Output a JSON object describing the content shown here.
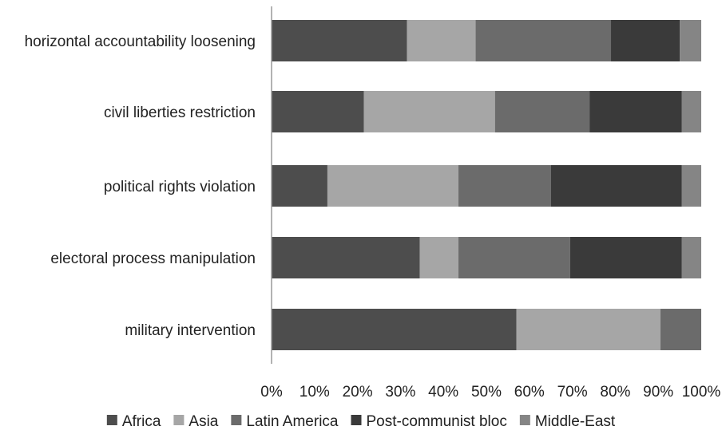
{
  "chart_data": {
    "type": "bar",
    "orientation": "horizontal",
    "stacked": true,
    "title": "",
    "xlabel": "",
    "ylabel": "",
    "xlim": [
      0,
      100
    ],
    "x_tick_labels": [
      "0%",
      "10%",
      "20%",
      "30%",
      "40%",
      "50%",
      "60%",
      "70%",
      "80%",
      "90%",
      "100%"
    ],
    "categories": [
      "horizontal accountability loosening",
      "civil liberties restriction",
      "political rights violation",
      "electoral process manipulation",
      "military intervention"
    ],
    "series": [
      {
        "name": "Africa",
        "color": "#4d4d4d",
        "values": [
          31.5,
          21.5,
          13,
          34.5,
          57
        ]
      },
      {
        "name": "Asia",
        "color": "#a6a6a6",
        "values": [
          16,
          30.5,
          30.5,
          9,
          33.5
        ]
      },
      {
        "name": "Latin America",
        "color": "#6b6b6b",
        "values": [
          31.5,
          22,
          21.5,
          26,
          9.5
        ]
      },
      {
        "name": "Post-communist bloc",
        "color": "#3a3a3a",
        "values": [
          16,
          21.5,
          30.5,
          26,
          0
        ]
      },
      {
        "name": "Middle-East",
        "color": "#858585",
        "values": [
          5,
          4.5,
          4.5,
          4.5,
          0
        ]
      }
    ],
    "grid": false,
    "legend_position": "bottom"
  }
}
